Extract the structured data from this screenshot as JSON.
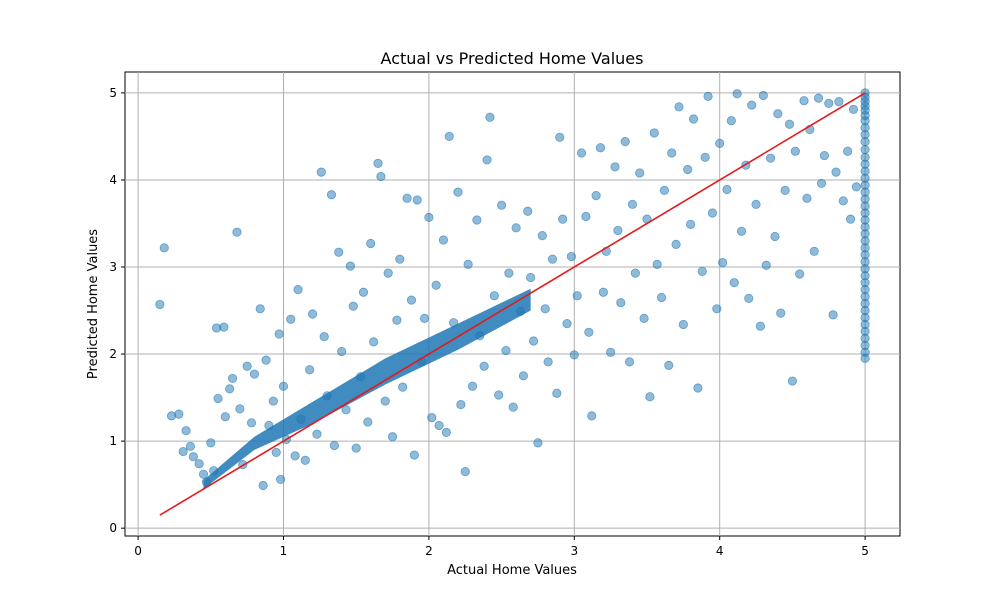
{
  "chart_data": {
    "type": "scatter",
    "title": "Actual vs Predicted Home Values",
    "xlabel": "Actual Home Values",
    "ylabel": "Predicted Home Values",
    "xlim": [
      -0.09,
      5.24
    ],
    "ylim": [
      -0.09,
      5.24
    ],
    "xticks": [
      0,
      1,
      2,
      3,
      4,
      5
    ],
    "yticks": [
      0,
      1,
      2,
      3,
      4,
      5
    ],
    "grid": true,
    "point_color": "#1f77b4",
    "point_opacity": 0.5,
    "line_color": "#e41a1c",
    "reference_line": {
      "x": [
        0.15,
        5.0
      ],
      "y": [
        0.15,
        5.0
      ]
    },
    "series": [
      {
        "type": "scatter",
        "points": [
          [
            0.15,
            2.57
          ],
          [
            0.18,
            3.22
          ],
          [
            0.23,
            1.29
          ],
          [
            0.28,
            1.31
          ],
          [
            0.31,
            0.88
          ],
          [
            0.33,
            1.12
          ],
          [
            0.36,
            0.94
          ],
          [
            0.38,
            0.82
          ],
          [
            0.42,
            0.74
          ],
          [
            0.45,
            0.62
          ],
          [
            0.47,
            0.53
          ],
          [
            0.5,
            0.98
          ],
          [
            0.52,
            0.66
          ],
          [
            0.54,
            2.3
          ],
          [
            0.55,
            1.49
          ],
          [
            0.59,
            2.31
          ],
          [
            0.6,
            1.28
          ],
          [
            0.63,
            1.6
          ],
          [
            0.65,
            1.72
          ],
          [
            0.68,
            3.4
          ],
          [
            0.7,
            1.37
          ],
          [
            0.72,
            0.73
          ],
          [
            0.75,
            1.86
          ],
          [
            0.78,
            1.21
          ],
          [
            0.8,
            1.77
          ],
          [
            0.84,
            2.52
          ],
          [
            0.86,
            0.49
          ],
          [
            0.88,
            1.93
          ],
          [
            0.9,
            1.18
          ],
          [
            0.93,
            1.46
          ],
          [
            0.95,
            0.87
          ],
          [
            0.97,
            2.23
          ],
          [
            0.98,
            0.56
          ],
          [
            1.0,
            1.63
          ],
          [
            1.02,
            1.02
          ],
          [
            1.05,
            2.4
          ],
          [
            1.08,
            0.83
          ],
          [
            1.1,
            2.74
          ],
          [
            1.12,
            1.25
          ],
          [
            1.15,
            0.78
          ],
          [
            1.18,
            1.82
          ],
          [
            1.2,
            2.46
          ],
          [
            1.23,
            1.08
          ],
          [
            1.26,
            4.09
          ],
          [
            1.28,
            2.2
          ],
          [
            1.3,
            1.52
          ],
          [
            1.33,
            3.83
          ],
          [
            1.35,
            0.95
          ],
          [
            1.38,
            3.17
          ],
          [
            1.4,
            2.03
          ],
          [
            1.43,
            1.36
          ],
          [
            1.46,
            3.01
          ],
          [
            1.48,
            2.55
          ],
          [
            1.5,
            0.92
          ],
          [
            1.53,
            1.74
          ],
          [
            1.55,
            2.71
          ],
          [
            1.58,
            1.22
          ],
          [
            1.6,
            3.27
          ],
          [
            1.62,
            2.14
          ],
          [
            1.65,
            4.19
          ],
          [
            1.67,
            4.04
          ],
          [
            1.7,
            1.46
          ],
          [
            1.72,
            2.93
          ],
          [
            1.75,
            1.05
          ],
          [
            1.78,
            2.39
          ],
          [
            1.8,
            3.09
          ],
          [
            1.82,
            1.62
          ],
          [
            1.85,
            3.79
          ],
          [
            1.88,
            2.62
          ],
          [
            1.9,
            0.84
          ],
          [
            1.92,
            3.77
          ],
          [
            1.95,
            1.91
          ],
          [
            1.97,
            2.41
          ],
          [
            2.0,
            3.57
          ],
          [
            2.02,
            1.27
          ],
          [
            2.05,
            2.79
          ],
          [
            2.07,
            1.18
          ],
          [
            2.1,
            3.31
          ],
          [
            2.12,
            1.1
          ],
          [
            2.14,
            4.5
          ],
          [
            2.17,
            2.36
          ],
          [
            2.2,
            3.86
          ],
          [
            2.22,
            1.42
          ],
          [
            2.25,
            0.65
          ],
          [
            2.27,
            3.03
          ],
          [
            2.3,
            1.63
          ],
          [
            2.33,
            3.54
          ],
          [
            2.35,
            2.21
          ],
          [
            2.38,
            1.86
          ],
          [
            2.4,
            4.23
          ],
          [
            2.42,
            4.72
          ],
          [
            2.45,
            2.67
          ],
          [
            2.48,
            1.53
          ],
          [
            2.5,
            3.71
          ],
          [
            2.53,
            2.04
          ],
          [
            2.55,
            2.93
          ],
          [
            2.58,
            1.39
          ],
          [
            2.6,
            3.45
          ],
          [
            2.63,
            2.49
          ],
          [
            2.65,
            1.75
          ],
          [
            2.68,
            3.64
          ],
          [
            2.7,
            2.88
          ],
          [
            2.72,
            2.15
          ],
          [
            2.75,
            0.98
          ],
          [
            2.78,
            3.36
          ],
          [
            2.8,
            2.52
          ],
          [
            2.82,
            1.91
          ],
          [
            2.85,
            3.09
          ],
          [
            2.88,
            1.55
          ],
          [
            2.9,
            4.49
          ],
          [
            2.92,
            3.55
          ],
          [
            2.95,
            2.35
          ],
          [
            2.98,
            3.12
          ],
          [
            3.0,
            1.99
          ],
          [
            3.02,
            2.67
          ],
          [
            3.05,
            4.31
          ],
          [
            3.08,
            3.58
          ],
          [
            3.1,
            2.25
          ],
          [
            3.12,
            1.29
          ],
          [
            3.15,
            3.82
          ],
          [
            3.18,
            4.37
          ],
          [
            3.2,
            2.71
          ],
          [
            3.22,
            3.18
          ],
          [
            3.25,
            2.02
          ],
          [
            3.28,
            4.15
          ],
          [
            3.3,
            3.42
          ],
          [
            3.32,
            2.59
          ],
          [
            3.35,
            4.44
          ],
          [
            3.38,
            1.91
          ],
          [
            3.4,
            3.72
          ],
          [
            3.42,
            2.93
          ],
          [
            3.45,
            4.08
          ],
          [
            3.48,
            2.41
          ],
          [
            3.5,
            3.55
          ],
          [
            3.52,
            1.51
          ],
          [
            3.55,
            4.54
          ],
          [
            3.57,
            3.03
          ],
          [
            3.6,
            2.65
          ],
          [
            3.62,
            3.88
          ],
          [
            3.65,
            1.87
          ],
          [
            3.67,
            4.31
          ],
          [
            3.7,
            3.26
          ],
          [
            3.72,
            4.84
          ],
          [
            3.75,
            2.34
          ],
          [
            3.78,
            4.12
          ],
          [
            3.8,
            3.49
          ],
          [
            3.82,
            4.7
          ],
          [
            3.85,
            1.61
          ],
          [
            3.88,
            2.95
          ],
          [
            3.9,
            4.26
          ],
          [
            3.92,
            4.96
          ],
          [
            3.95,
            3.62
          ],
          [
            3.98,
            2.52
          ],
          [
            4.0,
            4.42
          ],
          [
            4.02,
            3.05
          ],
          [
            4.05,
            3.89
          ],
          [
            4.08,
            4.68
          ],
          [
            4.1,
            2.82
          ],
          [
            4.12,
            4.99
          ],
          [
            4.15,
            3.41
          ],
          [
            4.18,
            4.17
          ],
          [
            4.2,
            2.64
          ],
          [
            4.22,
            4.86
          ],
          [
            4.25,
            3.72
          ],
          [
            4.28,
            2.32
          ],
          [
            4.3,
            4.97
          ],
          [
            4.32,
            3.02
          ],
          [
            4.35,
            4.25
          ],
          [
            4.38,
            3.35
          ],
          [
            4.4,
            4.76
          ],
          [
            4.42,
            2.47
          ],
          [
            4.45,
            3.88
          ],
          [
            4.48,
            4.64
          ],
          [
            4.5,
            1.69
          ],
          [
            4.52,
            4.33
          ],
          [
            4.55,
            2.92
          ],
          [
            4.58,
            4.91
          ],
          [
            4.6,
            3.79
          ],
          [
            4.62,
            4.58
          ],
          [
            4.65,
            3.18
          ],
          [
            4.68,
            4.94
          ],
          [
            4.7,
            3.96
          ],
          [
            4.72,
            4.28
          ],
          [
            4.75,
            4.88
          ],
          [
            4.78,
            2.45
          ],
          [
            4.8,
            4.09
          ],
          [
            4.82,
            4.9
          ],
          [
            4.85,
            3.76
          ],
          [
            4.88,
            4.33
          ],
          [
            4.9,
            3.55
          ],
          [
            4.92,
            4.81
          ],
          [
            4.94,
            3.92
          ],
          [
            5.0,
            5.0
          ],
          [
            5.0,
            4.95
          ],
          [
            5.0,
            4.9
          ],
          [
            5.0,
            4.85
          ],
          [
            5.0,
            4.8
          ],
          [
            5.0,
            4.74
          ],
          [
            5.0,
            4.68
          ],
          [
            5.0,
            4.6
          ],
          [
            5.0,
            4.52
          ],
          [
            5.0,
            4.44
          ],
          [
            5.0,
            4.35
          ],
          [
            5.0,
            4.26
          ],
          [
            5.0,
            4.18
          ],
          [
            5.0,
            4.1
          ],
          [
            5.0,
            4.02
          ],
          [
            5.0,
            3.94
          ],
          [
            5.0,
            3.86
          ],
          [
            5.0,
            3.78
          ],
          [
            5.0,
            3.7
          ],
          [
            5.0,
            3.62
          ],
          [
            5.0,
            3.54
          ],
          [
            5.0,
            3.46
          ],
          [
            5.0,
            3.38
          ],
          [
            5.0,
            3.3
          ],
          [
            5.0,
            3.22
          ],
          [
            5.0,
            3.14
          ],
          [
            5.0,
            3.06
          ],
          [
            5.0,
            2.98
          ],
          [
            5.0,
            2.9
          ],
          [
            5.0,
            2.82
          ],
          [
            5.0,
            2.74
          ],
          [
            5.0,
            2.66
          ],
          [
            5.0,
            2.58
          ],
          [
            5.0,
            2.5
          ],
          [
            5.0,
            2.42
          ],
          [
            5.0,
            2.34
          ],
          [
            5.0,
            2.26
          ],
          [
            5.0,
            2.18
          ],
          [
            5.0,
            2.1
          ],
          [
            5.0,
            2.02
          ],
          [
            5.0,
            1.95
          ]
        ]
      }
    ]
  }
}
